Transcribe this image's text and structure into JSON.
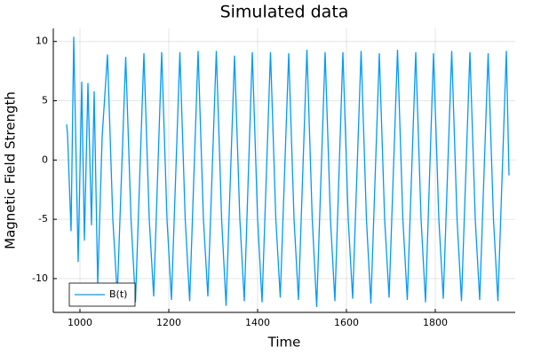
{
  "chart_data": {
    "type": "line",
    "title": "Simulated data",
    "x_label": "Time",
    "y_label": "Magnetic Field Strength",
    "x": [
      970,
      972,
      980,
      986,
      996,
      1004,
      1010,
      1018,
      1026,
      1032,
      1040,
      1050,
      1062,
      1074,
      1084,
      1103,
      1115,
      1125,
      1144,
      1156,
      1166,
      1184,
      1196,
      1206,
      1225,
      1237,
      1247,
      1266,
      1278,
      1288,
      1307,
      1319,
      1329,
      1348,
      1360,
      1370,
      1388,
      1400,
      1410,
      1429,
      1441,
      1451,
      1470,
      1482,
      1492,
      1511,
      1523,
      1533,
      1552,
      1564,
      1574,
      1592,
      1604,
      1614,
      1633,
      1645,
      1655,
      1674,
      1686,
      1696,
      1715,
      1727,
      1737,
      1756,
      1768,
      1778,
      1796,
      1808,
      1818,
      1837,
      1849,
      1859,
      1878,
      1890,
      1900,
      1919,
      1931,
      1941,
      1960,
      1966
    ],
    "series": [
      {
        "name": "B(t)",
        "color": "#009af9",
        "values": [
          3,
          2.2,
          -6,
          10.4,
          -8.6,
          6.6,
          -6.8,
          6.5,
          -5.5,
          5.8,
          -10.5,
          2,
          8.9,
          -5,
          -11.4,
          8.7,
          -5,
          -12.0,
          9.0,
          -5,
          -11.5,
          9.1,
          -5,
          -11.8,
          9.1,
          -5,
          -11.9,
          9.2,
          -5,
          -11.5,
          9.2,
          -5,
          -12.3,
          8.8,
          -5,
          -11.9,
          9.1,
          -5,
          -12.0,
          9.1,
          -5,
          -11.6,
          9.0,
          -5,
          -11.8,
          9.3,
          -5,
          -12.4,
          9.1,
          -5,
          -11.9,
          9.1,
          -5,
          -11.7,
          9.2,
          -5,
          -12.1,
          9.0,
          -5,
          -11.6,
          9.3,
          -5,
          -11.8,
          9.1,
          -5,
          -12.0,
          9.0,
          -5,
          -11.7,
          9.2,
          -5,
          -11.9,
          9.1,
          -5,
          -11.8,
          9.0,
          -5,
          -11.9,
          9.2,
          -1.3
        ]
      }
    ],
    "xlim": [
      940,
      1980
    ],
    "xticks": [
      1000,
      1200,
      1400,
      1600,
      1800
    ],
    "ylim": [
      -12.85,
      11.1
    ],
    "yticks": [
      -10,
      -5,
      0,
      5,
      10
    ],
    "grid": true,
    "legend": "bottom-left"
  }
}
